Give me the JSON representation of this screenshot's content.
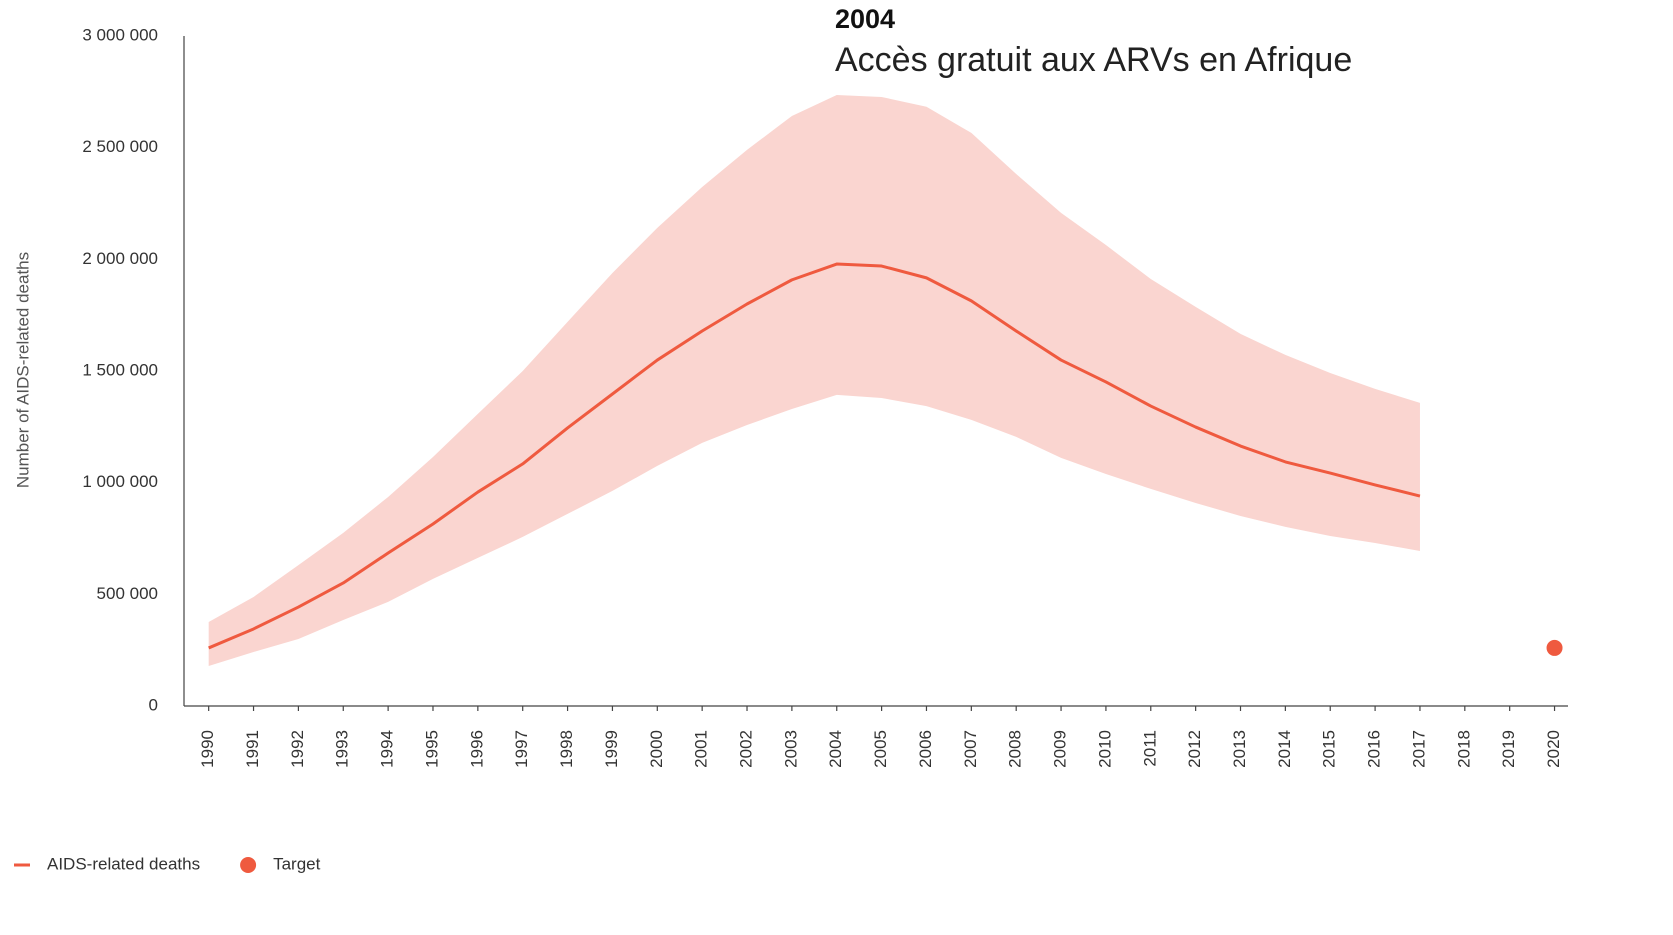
{
  "chart_data": {
    "type": "line",
    "annotation": {
      "title": "2004",
      "text": "Accès gratuit aux ARVs en Afrique"
    },
    "y_label": "Number of AIDS-related deaths",
    "x": [
      1990,
      1991,
      1992,
      1993,
      1994,
      1995,
      1996,
      1997,
      1998,
      1999,
      2000,
      2001,
      2002,
      2003,
      2004,
      2005,
      2006,
      2007,
      2008,
      2009,
      2010,
      2011,
      2012,
      2013,
      2014,
      2015,
      2016,
      2017
    ],
    "series": [
      {
        "name": "AIDS-related deaths",
        "color": "#ef5a3f",
        "band_color": "#fad5d0",
        "values": [
          260000,
          345000,
          443000,
          551000,
          685000,
          815000,
          958000,
          1084000,
          1245000,
          1397000,
          1549000,
          1679000,
          1800000,
          1908000,
          1979000,
          1970000,
          1917000,
          1814000,
          1679000,
          1549000,
          1451000,
          1343000,
          1249000,
          1164000,
          1093000,
          1043000,
          990000,
          940000
        ],
        "upper": [
          376000,
          488000,
          631000,
          775000,
          936000,
          1115000,
          1308000,
          1500000,
          1720000,
          1939000,
          2141000,
          2324000,
          2490000,
          2642000,
          2736000,
          2727000,
          2683000,
          2566000,
          2382000,
          2208000,
          2064000,
          1912000,
          1787000,
          1666000,
          1572000,
          1491000,
          1420000,
          1357000
        ],
        "lower": [
          179000,
          242000,
          300000,
          385000,
          466000,
          569000,
          663000,
          757000,
          860000,
          963000,
          1075000,
          1178000,
          1258000,
          1330000,
          1393000,
          1379000,
          1343000,
          1281000,
          1205000,
          1111000,
          1039000,
          972000,
          909000,
          851000,
          802000,
          761000,
          730000,
          694000
        ]
      },
      {
        "name": "Target",
        "color": "#ef5a3f",
        "marker": "dot",
        "x": [
          2020
        ],
        "values": [
          260000
        ]
      }
    ],
    "xlim": [
      1989.45,
      2020.3
    ],
    "xticks": [
      1990,
      1991,
      1992,
      1993,
      1994,
      1995,
      1996,
      1997,
      1998,
      1999,
      2000,
      2001,
      2002,
      2003,
      2004,
      2005,
      2006,
      2007,
      2008,
      2009,
      2010,
      2011,
      2012,
      2013,
      2014,
      2015,
      2016,
      2017,
      2018,
      2019,
      2020
    ],
    "ylim": [
      0,
      3000000
    ],
    "yticks": [
      0,
      {
        "value": 500000,
        "label": "500 000"
      },
      {
        "value": 1000000,
        "label": "1 000 000"
      },
      {
        "value": 1500000,
        "label": "1 500 000"
      },
      {
        "value": 2000000,
        "label": "2 000 000"
      },
      {
        "value": 2500000,
        "label": "2 500 000"
      },
      {
        "value": 3000000,
        "label": "3 000 000"
      }
    ],
    "grid": false,
    "legend": "bottom-left"
  }
}
